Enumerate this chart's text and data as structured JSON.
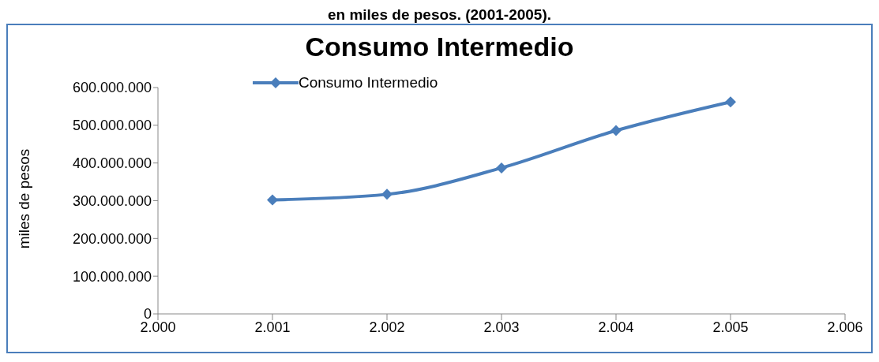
{
  "chart_data": {
    "type": "line",
    "title": "Consumo Intermedio",
    "ylabel": "miles de pesos",
    "annotations": [
      "en miles de pesos. (2001-2005)."
    ],
    "x": [
      2001,
      2002,
      2003,
      2004,
      2005
    ],
    "series": [
      {
        "name": "Consumo Intermedio",
        "color": "#4a7ebb",
        "values": [
          302000000,
          317000000,
          387000000,
          486000000,
          562000000
        ]
      }
    ],
    "xlim": [
      2000,
      2006
    ],
    "xticks": [
      {
        "value": 2000,
        "label": "2.000"
      },
      {
        "value": 2001,
        "label": "2.001"
      },
      {
        "value": 2002,
        "label": "2.002"
      },
      {
        "value": 2003,
        "label": "2.003"
      },
      {
        "value": 2004,
        "label": "2.004"
      },
      {
        "value": 2005,
        "label": "2.005"
      },
      {
        "value": 2006,
        "label": "2.006"
      }
    ],
    "ylim": [
      0,
      600000000
    ],
    "yticks": [
      0,
      {
        "value": 100000000,
        "label": "100.000.000"
      },
      {
        "value": 200000000,
        "label": "200.000.000"
      },
      {
        "value": 300000000,
        "label": "300.000.000"
      },
      {
        "value": 400000000,
        "label": "400.000.000"
      },
      {
        "value": 500000000,
        "label": "500.000.000"
      },
      {
        "value": 600000000,
        "label": "600.000.000"
      }
    ],
    "grid": false,
    "legend": "top left",
    "marker": "diamond",
    "line_style": "solid"
  }
}
